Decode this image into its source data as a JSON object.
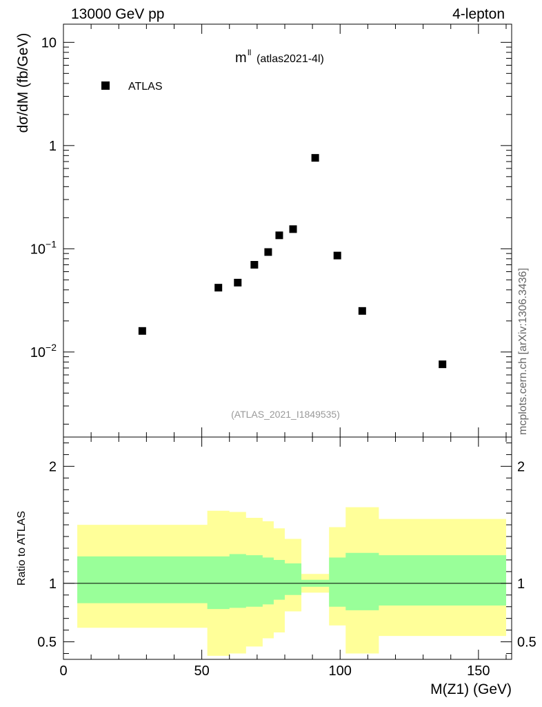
{
  "header": {
    "left": "13000 GeV pp",
    "right": "4-lepton"
  },
  "side_label": "mcplots.cern.ch [arXiv:1306.3436]",
  "chart_data": [
    {
      "type": "scatter",
      "title_main": "m",
      "title_sup": "ll",
      "title_paren": "(atlas2021-4l)",
      "ylabel": "dσ/dM (fb/GeV)",
      "yscale": "log",
      "ylim": [
        0.0015,
        15
      ],
      "xlim": [
        0,
        162
      ],
      "legend": {
        "label": "ATLAS",
        "placement": "top-left"
      },
      "analysis_label": "(ATLAS_2021_I1849535)",
      "yticks": [
        {
          "value": 10,
          "base": "10",
          "exp": ""
        },
        {
          "value": 1,
          "base": "1",
          "exp": ""
        },
        {
          "value": 0.1,
          "base": "10",
          "exp": "−1"
        },
        {
          "value": 0.01,
          "base": "10",
          "exp": "−2"
        }
      ],
      "series": [
        {
          "name": "ATLAS",
          "color": "#000000",
          "x": [
            28.5,
            56,
            63,
            69,
            74,
            78,
            83,
            91,
            99,
            108,
            137
          ],
          "y": [
            0.016,
            0.042,
            0.047,
            0.07,
            0.093,
            0.135,
            0.155,
            0.76,
            0.086,
            0.025,
            0.0076
          ]
        }
      ]
    },
    {
      "type": "area",
      "ylabel": "Ratio to ATLAS",
      "xlabel": "M(Z1) (GeV)",
      "ylim": [
        0.35,
        2.25
      ],
      "xlim": [
        0,
        162
      ],
      "xticks": [
        0,
        50,
        100,
        150
      ],
      "yticks": [
        "0.5",
        "1",
        "2"
      ],
      "ytick_values": [
        0.5,
        1,
        2
      ],
      "reference_line": 1,
      "colors": {
        "outer_band": "#ffff99",
        "inner_band": "#99ff99",
        "line": "#000000"
      },
      "bins": [
        5,
        52,
        60,
        66,
        72,
        76,
        80,
        86,
        96,
        102,
        114,
        160
      ],
      "outer_low": [
        0.62,
        0.38,
        0.4,
        0.46,
        0.53,
        0.58,
        0.76,
        0.92,
        0.64,
        0.4,
        0.55
      ],
      "outer_high": [
        1.5,
        1.62,
        1.61,
        1.56,
        1.53,
        1.47,
        1.38,
        1.08,
        1.48,
        1.65,
        1.55
      ],
      "inner_low": [
        0.83,
        0.78,
        0.79,
        0.8,
        0.82,
        0.86,
        0.9,
        0.97,
        0.8,
        0.77,
        0.81
      ],
      "inner_high": [
        1.23,
        1.23,
        1.25,
        1.24,
        1.22,
        1.2,
        1.17,
        1.03,
        1.22,
        1.26,
        1.24
      ]
    }
  ]
}
